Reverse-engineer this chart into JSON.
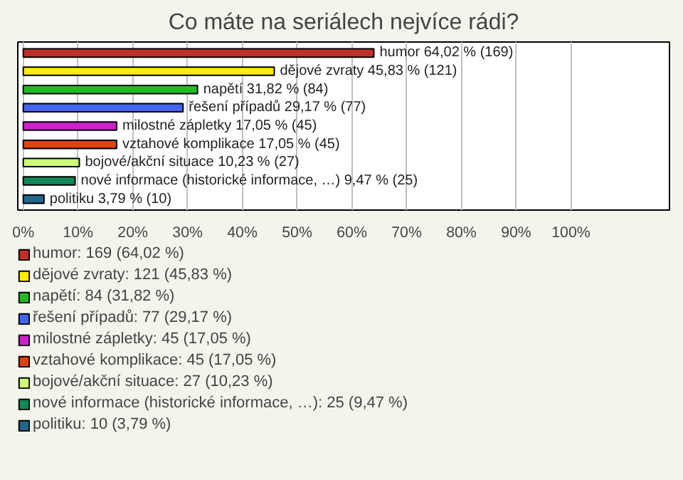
{
  "chart_data": {
    "type": "bar",
    "orientation": "horizontal",
    "stacked": true,
    "title": "Co máte na seriálech nejvíce rádi?",
    "categories": [
      "humor",
      "dějové zvraty",
      "napětí",
      "řešení případů",
      "milostné zápletky",
      "vztahové komplikace",
      "bojové/akční situace",
      "nové informace (historické informace, …)",
      "politiku"
    ],
    "series": [
      {
        "name": "humor: 169 (64,02 %)",
        "color": "#c0302a",
        "values": [
          64.02,
          null,
          null,
          null,
          null,
          null,
          null,
          null,
          null
        ],
        "value_labels": [
          "64,02 % (169)",
          null,
          null,
          null,
          null,
          null,
          null,
          null,
          null
        ]
      },
      {
        "name": "dějové zvraty: 121 (45,83 %)",
        "color": "#ffee00",
        "values": [
          null,
          45.83,
          null,
          null,
          null,
          null,
          null,
          null,
          null
        ],
        "value_labels": [
          null,
          "45,83 % (121)",
          null,
          null,
          null,
          null,
          null,
          null,
          null
        ]
      },
      {
        "name": "napětí: 84 (31,82 %)",
        "color": "#22bb22",
        "values": [
          null,
          null,
          31.82,
          null,
          null,
          null,
          null,
          null,
          null
        ],
        "value_labels": [
          null,
          null,
          "31,82 % (84)",
          null,
          null,
          null,
          null,
          null,
          null
        ]
      },
      {
        "name": "řešení případů: 77 (29,17 %)",
        "color": "#4466ee",
        "values": [
          null,
          null,
          null,
          29.17,
          null,
          null,
          null,
          null,
          null
        ],
        "value_labels": [
          null,
          null,
          null,
          "29,17 % (77)",
          null,
          null,
          null,
          null,
          null
        ]
      },
      {
        "name": "milostné zápletky: 45 (17,05 %)",
        "color": "#cc22cc",
        "values": [
          null,
          null,
          null,
          null,
          17.05,
          null,
          null,
          null,
          null
        ],
        "value_labels": [
          null,
          null,
          null,
          null,
          "17,05 % (45)",
          null,
          null,
          null,
          null
        ]
      },
      {
        "name": "vztahové komplikace: 45 (17,05 %)",
        "color": "#dd4411",
        "values": [
          null,
          null,
          null,
          null,
          null,
          17.05,
          null,
          null,
          null
        ],
        "value_labels": [
          null,
          null,
          null,
          null,
          null,
          "17,05 % (45)",
          null,
          null,
          null
        ]
      },
      {
        "name": "bojové/akční situace: 27 (10,23 %)",
        "color": "#ccff77",
        "values": [
          null,
          null,
          null,
          null,
          null,
          null,
          10.23,
          null,
          null
        ],
        "value_labels": [
          null,
          null,
          null,
          null,
          null,
          null,
          "10,23 % (27)",
          null,
          null
        ]
      },
      {
        "name": "nové informace (historické informace, …): 25 (9,47 %)",
        "color": "#118855",
        "values": [
          null,
          null,
          null,
          null,
          null,
          null,
          null,
          9.47,
          null
        ],
        "value_labels": [
          null,
          null,
          null,
          null,
          null,
          null,
          null,
          "9,47 % (25)",
          null
        ]
      },
      {
        "name": "politiku: 10 (3,79 %)",
        "color": "#226688",
        "values": [
          null,
          null,
          null,
          null,
          null,
          null,
          null,
          null,
          3.79
        ],
        "value_labels": [
          null,
          null,
          null,
          null,
          null,
          null,
          null,
          null,
          "3,79 % (10)"
        ]
      }
    ],
    "xlim": [
      -1,
      118
    ],
    "xticks": [
      {
        "value": 0,
        "label": "0%"
      },
      {
        "value": 10,
        "label": "10%"
      },
      {
        "value": 20,
        "label": "20%"
      },
      {
        "value": 30,
        "label": "30%"
      },
      {
        "value": 40,
        "label": "40%"
      },
      {
        "value": 50,
        "label": "50%"
      },
      {
        "value": 60,
        "label": "60%"
      },
      {
        "value": 70,
        "label": "70%"
      },
      {
        "value": 80,
        "label": "80%"
      },
      {
        "value": 90,
        "label": "90%"
      },
      {
        "value": 100,
        "label": "100%"
      }
    ],
    "grid": "x",
    "legend": "bottom"
  }
}
